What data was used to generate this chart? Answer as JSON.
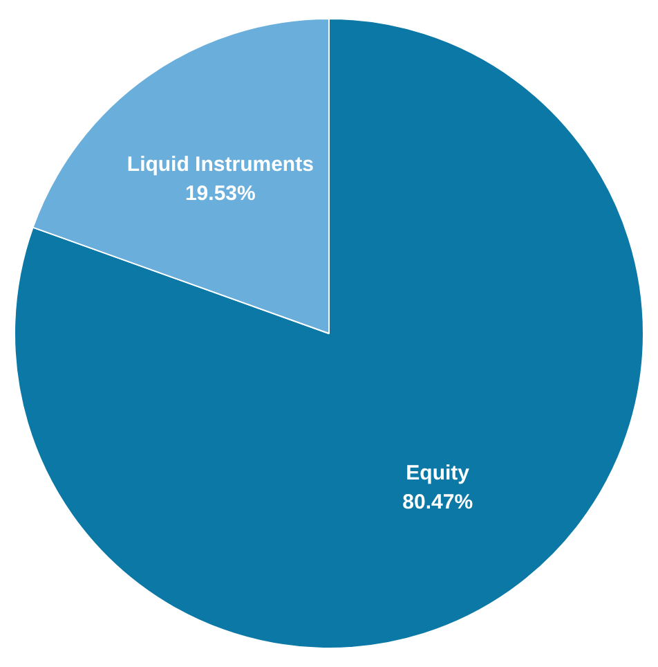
{
  "chart_data": {
    "type": "pie",
    "categories": [
      "Equity",
      "Liquid Instruments"
    ],
    "values": [
      80.47,
      19.53
    ],
    "colors": [
      "#0b78a6",
      "#6aafdc"
    ],
    "value_labels": [
      "80.47%",
      "19.53%"
    ],
    "legend": false
  }
}
